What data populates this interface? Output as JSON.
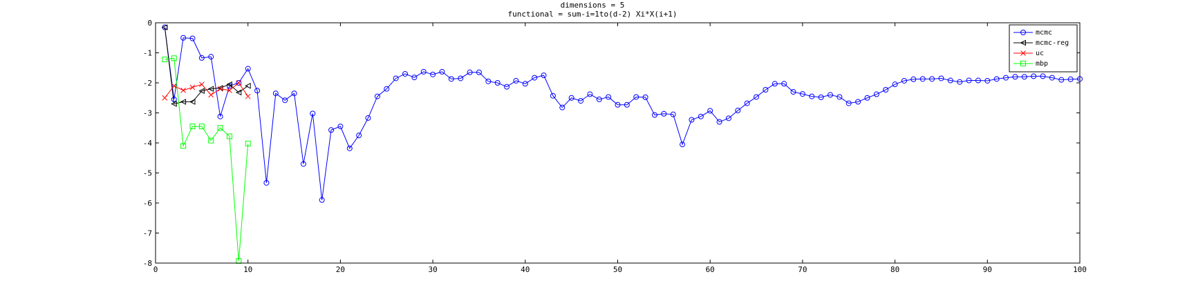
{
  "chart_data": {
    "type": "line",
    "title_lines": [
      "dimensions = 5",
      "functional = sum-i=1to(d-2) Xi*X(i+1)"
    ],
    "xlim": [
      0,
      100
    ],
    "ylim": [
      -8,
      0
    ],
    "xticks": [
      0,
      10,
      20,
      30,
      40,
      50,
      60,
      70,
      80,
      90,
      100
    ],
    "yticks": [
      0,
      -1,
      -2,
      -3,
      -4,
      -5,
      -6,
      -7,
      -8
    ],
    "legend_position": "top-right",
    "series": [
      {
        "name": "mcmc",
        "color": "#0000ff",
        "marker": "circle",
        "x": [
          1,
          2,
          3,
          4,
          5,
          6,
          7,
          8,
          9,
          10,
          11,
          12,
          13,
          14,
          15,
          16,
          17,
          18,
          19,
          20,
          21,
          22,
          23,
          24,
          25,
          26,
          27,
          28,
          29,
          30,
          31,
          32,
          33,
          34,
          35,
          36,
          37,
          38,
          39,
          40,
          41,
          42,
          43,
          44,
          45,
          46,
          47,
          48,
          49,
          50,
          51,
          52,
          53,
          54,
          55,
          56,
          57,
          58,
          59,
          60,
          61,
          62,
          63,
          64,
          65,
          66,
          67,
          68,
          69,
          70,
          71,
          72,
          73,
          74,
          75,
          76,
          77,
          78,
          79,
          80,
          81,
          82,
          83,
          84,
          85,
          86,
          87,
          88,
          89,
          90,
          91,
          92,
          93,
          94,
          95,
          96,
          97,
          98,
          99,
          100
        ],
        "y": [
          -0.15,
          -2.55,
          -0.5,
          -0.52,
          -1.17,
          -1.13,
          -3.12,
          -2.1,
          -2.0,
          -1.53,
          -2.26,
          -5.33,
          -2.35,
          -2.58,
          -2.35,
          -4.7,
          -3.02,
          -5.9,
          -3.57,
          -3.45,
          -4.18,
          -3.75,
          -3.17,
          -2.45,
          -2.2,
          -1.85,
          -1.7,
          -1.82,
          -1.63,
          -1.72,
          -1.63,
          -1.87,
          -1.85,
          -1.65,
          -1.65,
          -1.95,
          -2.0,
          -2.13,
          -1.93,
          -2.03,
          -1.83,
          -1.75,
          -2.43,
          -2.82,
          -2.5,
          -2.6,
          -2.38,
          -2.55,
          -2.47,
          -2.73,
          -2.73,
          -2.47,
          -2.48,
          -3.07,
          -3.03,
          -3.05,
          -4.05,
          -3.23,
          -3.12,
          -2.93,
          -3.3,
          -3.18,
          -2.92,
          -2.68,
          -2.47,
          -2.23,
          -2.03,
          -2.03,
          -2.3,
          -2.37,
          -2.45,
          -2.48,
          -2.4,
          -2.47,
          -2.68,
          -2.63,
          -2.5,
          -2.38,
          -2.23,
          -2.05,
          -1.93,
          -1.88,
          -1.87,
          -1.87,
          -1.85,
          -1.92,
          -1.97,
          -1.92,
          -1.92,
          -1.93,
          -1.87,
          -1.83,
          -1.8,
          -1.8,
          -1.78,
          -1.78,
          -1.83,
          -1.9,
          -1.88,
          -1.87
        ]
      },
      {
        "name": "mcmc-reg",
        "color": "#000000",
        "marker": "triangle-left",
        "x": [
          1,
          2,
          3,
          4,
          5,
          6,
          7,
          8,
          9,
          10
        ],
        "y": [
          -0.15,
          -2.7,
          -2.63,
          -2.63,
          -2.27,
          -2.2,
          -2.17,
          -2.05,
          -2.32,
          -2.1
        ]
      },
      {
        "name": "uc",
        "color": "#ff0000",
        "marker": "x",
        "x": [
          1,
          2,
          3,
          4,
          5,
          6,
          7,
          8,
          9,
          10
        ],
        "y": [
          -2.5,
          -2.1,
          -2.25,
          -2.15,
          -2.05,
          -2.4,
          -2.2,
          -2.25,
          -2.0,
          -2.45
        ]
      },
      {
        "name": "mbp",
        "color": "#00ff00",
        "marker": "square",
        "x": [
          1,
          2,
          3,
          4,
          5,
          6,
          7,
          8,
          9,
          10
        ],
        "y": [
          -1.22,
          -1.18,
          -4.1,
          -3.45,
          -3.45,
          -3.92,
          -3.5,
          -3.78,
          -7.93,
          -4.02
        ]
      }
    ]
  }
}
